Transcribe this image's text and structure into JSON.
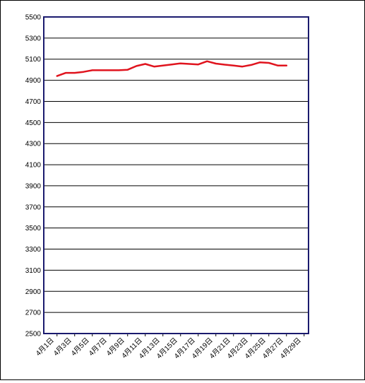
{
  "chart_data": {
    "type": "line",
    "title": "",
    "xlabel": "",
    "ylabel": "",
    "ylim": [
      2500,
      5500
    ],
    "yticks": [
      2500,
      2700,
      2900,
      3100,
      3300,
      3500,
      3700,
      3900,
      4100,
      4300,
      4500,
      4700,
      4900,
      5100,
      5300,
      5500
    ],
    "x_tick_labels": [
      "4月1日",
      "4月3日",
      "4月5日",
      "4月7日",
      "4月9日",
      "4月11日",
      "4月13日",
      "4月15日",
      "4月17日",
      "4月19日",
      "4月21日",
      "4月23日",
      "4月25日",
      "4月27日",
      "4月29日"
    ],
    "grid": true,
    "legend": "none",
    "colors": {
      "line": "#e0141e",
      "plot_border": "#1a1a6e",
      "grid": "#000000"
    },
    "series": [
      {
        "x": [
          "4月2日",
          "4月3日",
          "4月4日",
          "4月5日",
          "4月6日",
          "4月7日",
          "4月8日",
          "4月9日",
          "4月10日",
          "4月11日",
          "4月12日",
          "4月13日",
          "4月14日",
          "4月15日",
          "4月16日",
          "4月17日",
          "4月18日",
          "4月19日",
          "4月20日",
          "4月21日",
          "4月22日",
          "4月23日",
          "4月24日",
          "4月25日",
          "4月26日",
          "4月27日",
          "4月28日"
        ],
        "values": [
          4940,
          4970,
          4970,
          4980,
          4995,
          4995,
          4995,
          4995,
          5000,
          5035,
          5055,
          5030,
          5040,
          5050,
          5060,
          5055,
          5050,
          5080,
          5058,
          5048,
          5040,
          5030,
          5045,
          5070,
          5065,
          5040,
          5040
        ]
      }
    ]
  }
}
